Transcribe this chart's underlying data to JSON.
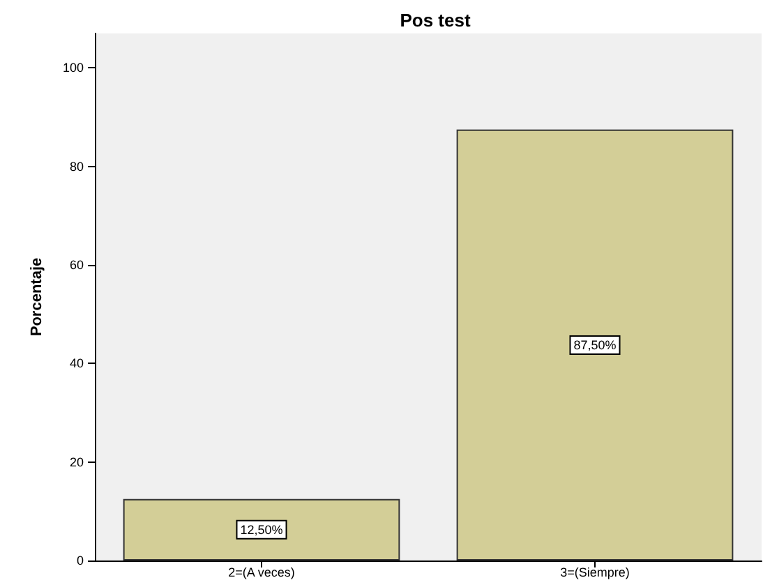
{
  "chart_data": {
    "type": "bar",
    "title": "Pos test",
    "ylabel": "Porcentaje",
    "categories": [
      "2=(A veces)",
      "3=(Siempre)"
    ],
    "values": [
      12.5,
      87.5
    ],
    "value_labels": [
      "12,50%",
      "87,50%"
    ],
    "color": "#d3ce97",
    "ylim": [
      0,
      107
    ],
    "yticks": [
      0,
      20,
      40,
      60,
      80,
      100
    ],
    "grid": false
  }
}
